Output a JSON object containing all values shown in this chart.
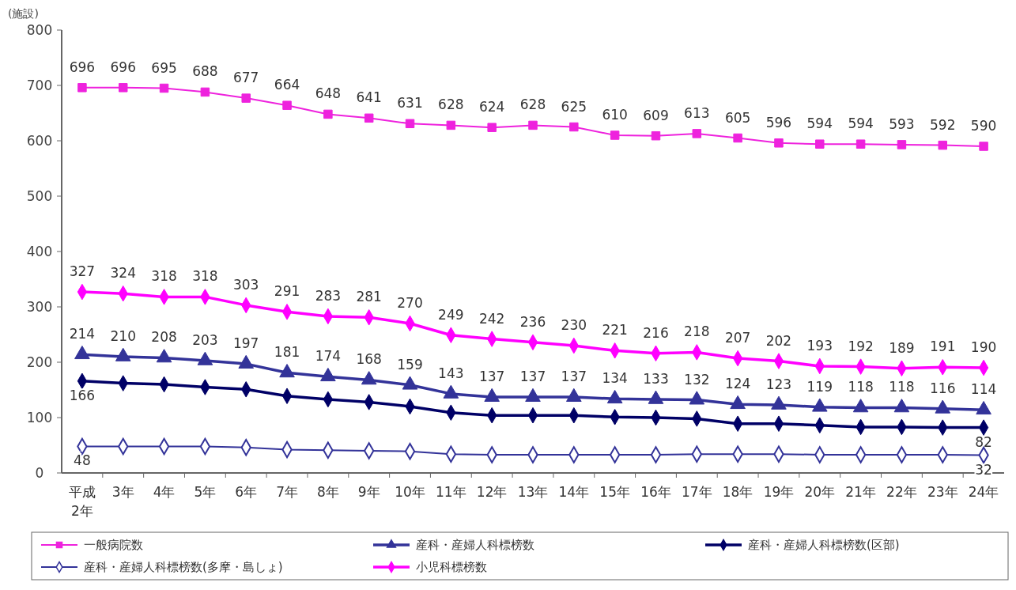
{
  "chart_data": {
    "type": "line",
    "ylabel": "(施設)",
    "categories": [
      "平成 2年",
      "3年",
      "4年",
      "5年",
      "6年",
      "7年",
      "8年",
      "9年",
      "10年",
      "11年",
      "12年",
      "13年",
      "14年",
      "15年",
      "16年",
      "17年",
      "18年",
      "19年",
      "20年",
      "21年",
      "22年",
      "23年",
      "24年"
    ],
    "ylim": [
      0,
      800
    ],
    "yticks": [
      0,
      100,
      200,
      300,
      400,
      500,
      600,
      700,
      800
    ],
    "legend": "bottom",
    "data_labels": true,
    "grid": false,
    "series": [
      {
        "name": "一般病院数",
        "color": "#ee22dd",
        "marker": "square",
        "values": [
          696,
          696,
          695,
          688,
          677,
          664,
          648,
          641,
          631,
          628,
          624,
          628,
          625,
          610,
          609,
          613,
          605,
          596,
          594,
          594,
          593,
          592,
          590
        ]
      },
      {
        "name": "産科・産婦人科標榜数",
        "color": "#333399",
        "marker": "triangle",
        "values": [
          214,
          210,
          208,
          203,
          197,
          181,
          174,
          168,
          159,
          143,
          137,
          137,
          137,
          134,
          133,
          132,
          124,
          123,
          119,
          118,
          118,
          116,
          114
        ]
      },
      {
        "name": "産科・産婦人科標榜数(区部)",
        "color": "#000066",
        "marker": "diamond",
        "values": [
          166,
          162,
          160,
          155,
          151,
          139,
          133,
          128,
          120,
          109,
          104,
          104,
          104,
          101,
          100,
          98,
          89,
          89,
          86,
          83,
          83,
          82,
          82
        ],
        "value_labels": [
          "166",
          null,
          null,
          null,
          null,
          null,
          null,
          null,
          null,
          null,
          null,
          null,
          null,
          null,
          null,
          null,
          null,
          null,
          null,
          null,
          null,
          null,
          "82"
        ]
      },
      {
        "name": "産科・産婦人科標榜数(多摩・島しょ)",
        "color": "#333399",
        "marker": "diamond",
        "values": [
          48,
          48,
          48,
          48,
          46,
          42,
          41,
          40,
          39,
          34,
          33,
          33,
          33,
          33,
          33,
          34,
          34,
          34,
          33,
          33,
          33,
          33,
          32
        ],
        "value_labels": [
          "48",
          null,
          null,
          null,
          null,
          null,
          null,
          null,
          null,
          null,
          null,
          null,
          null,
          null,
          null,
          null,
          null,
          null,
          null,
          null,
          null,
          null,
          "32"
        ]
      },
      {
        "name": "小児科標榜数",
        "color": "#ff00ff",
        "marker": "diamond",
        "values": [
          327,
          324,
          318,
          318,
          303,
          291,
          283,
          281,
          270,
          249,
          242,
          236,
          230,
          221,
          216,
          218,
          207,
          202,
          193,
          192,
          189,
          191,
          190
        ]
      }
    ]
  }
}
